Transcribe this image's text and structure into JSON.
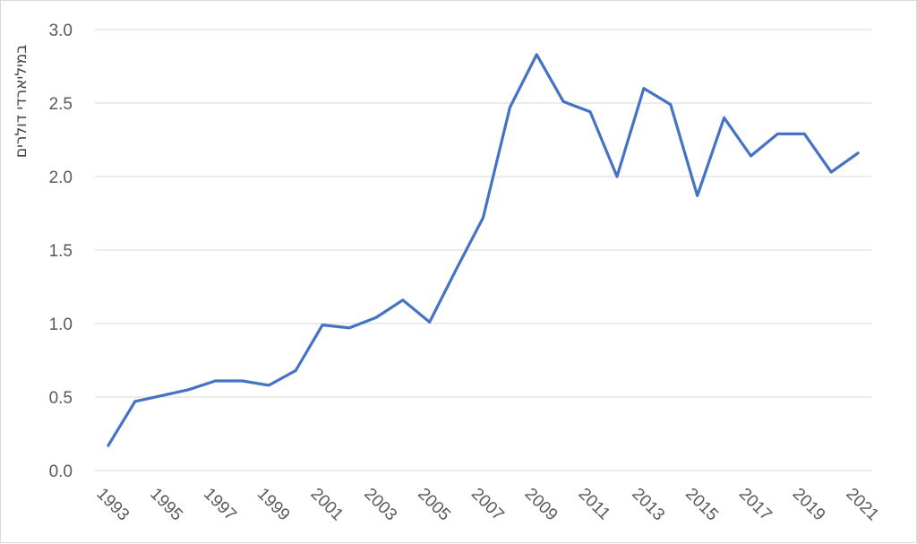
{
  "chart_data": {
    "type": "line",
    "title": "",
    "xlabel": "",
    "ylabel": "במיליארדי דולרים",
    "ylim": [
      0,
      3
    ],
    "yticks": [
      "0.0",
      "0.5",
      "1.0",
      "1.5",
      "2.0",
      "2.5",
      "3.0"
    ],
    "xtick_labels": [
      "1993",
      "1995",
      "1997",
      "1999",
      "2001",
      "2003",
      "2005",
      "2007",
      "2009",
      "2011",
      "2013",
      "2015",
      "2017",
      "2019",
      "2021"
    ],
    "grid": "horizontal",
    "legend": "none",
    "series": [
      {
        "color": "#4472c4",
        "x": [
          1993,
          1994,
          1995,
          1996,
          1997,
          1998,
          1999,
          2000,
          2001,
          2002,
          2003,
          2004,
          2005,
          2006,
          2007,
          2008,
          2009,
          2010,
          2011,
          2012,
          2013,
          2014,
          2015,
          2016,
          2017,
          2018,
          2019,
          2020,
          2021
        ],
        "values": [
          0.17,
          0.47,
          0.51,
          0.55,
          0.61,
          0.61,
          0.58,
          0.68,
          0.99,
          0.97,
          1.04,
          1.16,
          1.01,
          1.37,
          1.72,
          2.47,
          2.83,
          2.51,
          2.44,
          2.0,
          2.6,
          2.49,
          1.87,
          2.4,
          2.14,
          2.29,
          2.29,
          2.03,
          2.16
        ]
      }
    ]
  }
}
